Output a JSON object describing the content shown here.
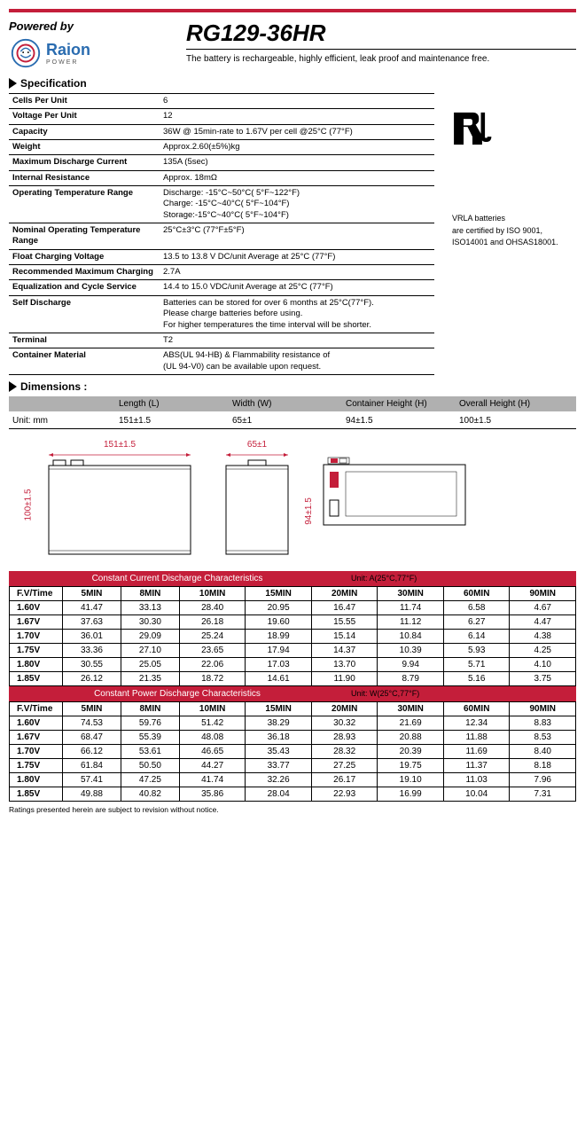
{
  "header": {
    "powered_by": "Powered by",
    "brand": "Raion",
    "brand_sub": "POWER",
    "model": "RG129-36HR",
    "tagline": "The battery is rechargeable, highly efficient, leak proof and maintenance free."
  },
  "spec": {
    "title": "Specification",
    "rows": [
      {
        "k": "Cells Per Unit",
        "v": "6"
      },
      {
        "k": "Voltage Per Unit",
        "v": "12"
      },
      {
        "k": "Capacity",
        "v": "36W @ 15min-rate to 1.67V per cell @25°C (77°F)"
      },
      {
        "k": "Weight",
        "v": "Approx.2.60(±5%)kg"
      },
      {
        "k": "Maximum Discharge Current",
        "v": "135A (5sec)"
      },
      {
        "k": "Internal Resistance",
        "v": "Approx. 18mΩ"
      },
      {
        "k": "Operating Temperature Range",
        "v": "Discharge: -15°C~50°C( 5°F~122°F)\nCharge: -15°C~40°C( 5°F~104°F)\nStorage:-15°C~40°C( 5°F~104°F)"
      },
      {
        "k": "Nominal Operating Temperature Range",
        "v": "25°C±3°C (77°F±5°F)"
      },
      {
        "k": "Float Charging Voltage",
        "v": "13.5 to 13.8 V DC/unit Average at 25°C (77°F)"
      },
      {
        "k": "Recommended Maximum Charging",
        "v": "2.7A"
      },
      {
        "k": "Equalization and Cycle Service",
        "v": "14.4 to 15.0 VDC/unit Average at 25°C (77°F)"
      },
      {
        "k": "Self Discharge",
        "v": "Batteries can be stored for over 6 months at 25°C(77°F).\nPlease charge batteries before using.\nFor higher temperatures the time interval will be shorter."
      },
      {
        "k": "Terminal",
        "v": "T2"
      },
      {
        "k": "Container Material",
        "v": "ABS(UL 94-HB) & Flammability resistance of\n(UL 94-V0) can be available upon request."
      }
    ],
    "cert": "VRLA batteries\nare certified by ISO 9001,\nISO14001 and OHSAS18001."
  },
  "dimensions": {
    "title": "Dimensions :",
    "unit_label": "Unit: mm",
    "cols": [
      "Length (L)",
      "Width (W)",
      "Container Height (H)",
      "Overall Height (H)"
    ],
    "vals": [
      "151±1.5",
      "65±1",
      "94±1.5",
      "100±1.5"
    ]
  },
  "drawing_labels": {
    "front_w": "151±1.5",
    "side_w": "65±1",
    "side_h": "94±1.5",
    "over_h": "100±1.5"
  },
  "table1": {
    "title": "Constant Current Discharge Characteristics",
    "unit": "Unit: A(25°C,77°F)",
    "header": [
      "F.V/Time",
      "5MIN",
      "8MIN",
      "10MIN",
      "15MIN",
      "20MIN",
      "30MIN",
      "60MIN",
      "90MIN"
    ],
    "rows": [
      [
        "1.60V",
        "41.47",
        "33.13",
        "28.40",
        "20.95",
        "16.47",
        "11.74",
        "6.58",
        "4.67"
      ],
      [
        "1.67V",
        "37.63",
        "30.30",
        "26.18",
        "19.60",
        "15.55",
        "11.12",
        "6.27",
        "4.47"
      ],
      [
        "1.70V",
        "36.01",
        "29.09",
        "25.24",
        "18.99",
        "15.14",
        "10.84",
        "6.14",
        "4.38"
      ],
      [
        "1.75V",
        "33.36",
        "27.10",
        "23.65",
        "17.94",
        "14.37",
        "10.39",
        "5.93",
        "4.25"
      ],
      [
        "1.80V",
        "30.55",
        "25.05",
        "22.06",
        "17.03",
        "13.70",
        "9.94",
        "5.71",
        "4.10"
      ],
      [
        "1.85V",
        "26.12",
        "21.35",
        "18.72",
        "14.61",
        "11.90",
        "8.79",
        "5.16",
        "3.75"
      ]
    ]
  },
  "table2": {
    "title": "Constant Power Discharge Characteristics",
    "unit": "Unit: W(25°C,77°F)",
    "header": [
      "F.V/Time",
      "5MIN",
      "8MIN",
      "10MIN",
      "15MIN",
      "20MIN",
      "30MIN",
      "60MIN",
      "90MIN"
    ],
    "rows": [
      [
        "1.60V",
        "74.53",
        "59.76",
        "51.42",
        "38.29",
        "30.32",
        "21.69",
        "12.34",
        "8.83"
      ],
      [
        "1.67V",
        "68.47",
        "55.39",
        "48.08",
        "36.18",
        "28.93",
        "20.88",
        "11.88",
        "8.53"
      ],
      [
        "1.70V",
        "66.12",
        "53.61",
        "46.65",
        "35.43",
        "28.32",
        "20.39",
        "11.69",
        "8.40"
      ],
      [
        "1.75V",
        "61.84",
        "50.50",
        "44.27",
        "33.77",
        "27.25",
        "19.75",
        "11.37",
        "8.18"
      ],
      [
        "1.80V",
        "57.41",
        "47.25",
        "41.74",
        "32.26",
        "26.17",
        "19.10",
        "11.03",
        "7.96"
      ],
      [
        "1.85V",
        "49.88",
        "40.82",
        "35.86",
        "28.04",
        "22.93",
        "16.99",
        "10.04",
        "7.31"
      ]
    ]
  },
  "footnote": "Ratings presented herein are subject to revision without notice.",
  "colors": {
    "red": "#c41e3a",
    "gray": "#b0b0b0",
    "blue": "#2a6cb0"
  }
}
